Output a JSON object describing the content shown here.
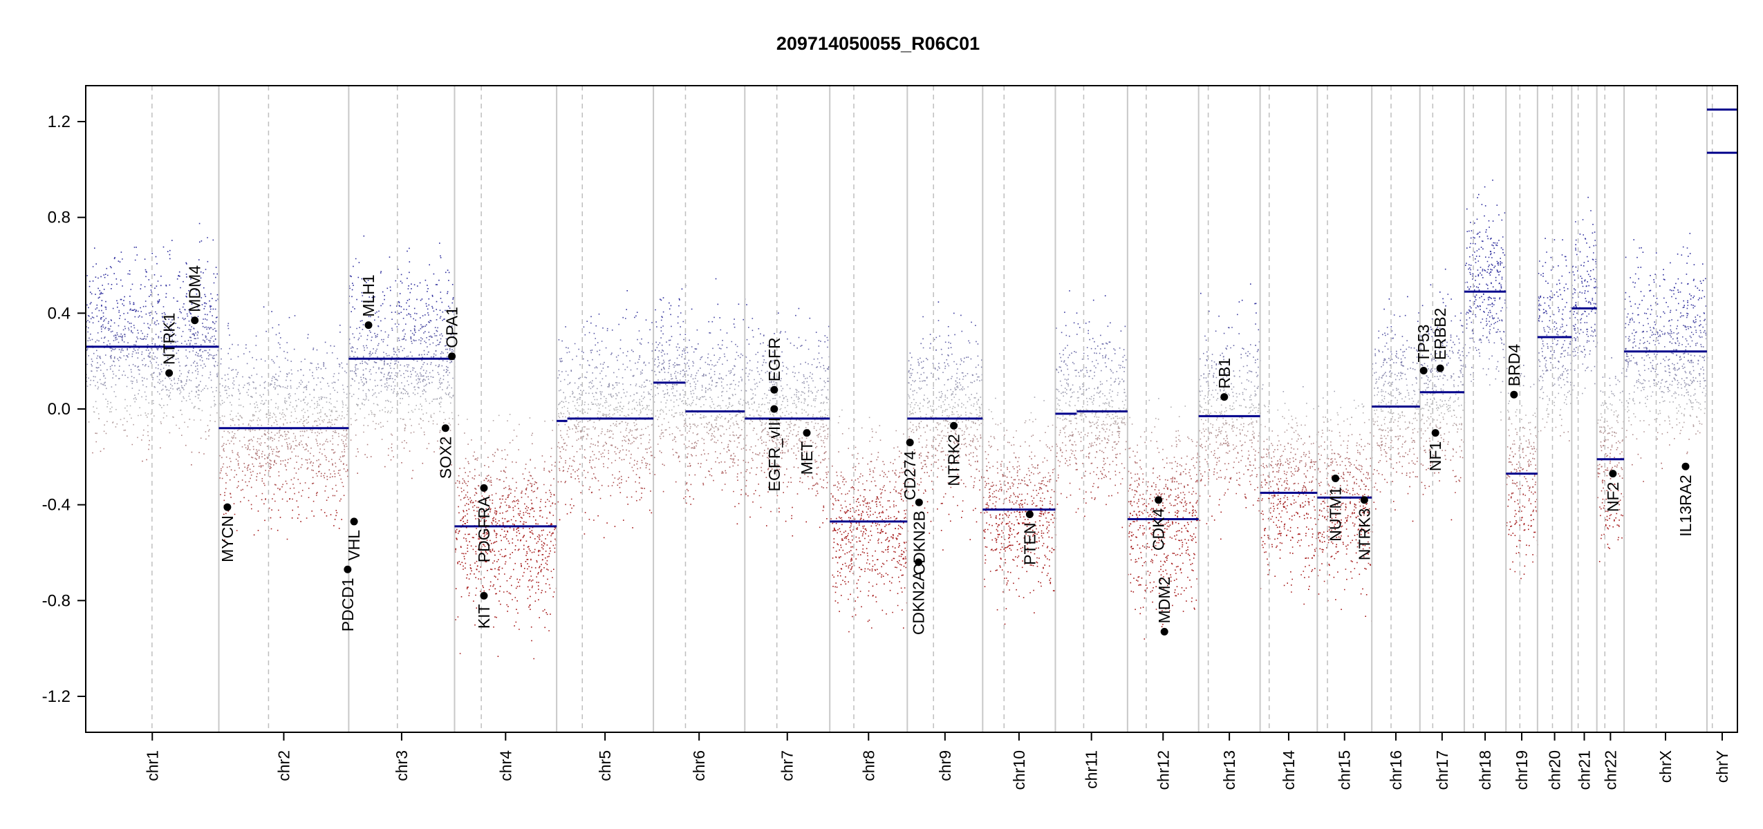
{
  "chart_data": {
    "type": "scatter",
    "title": "209714050055_R06C01",
    "xlabel": "",
    "ylabel": "",
    "ylim": [
      -1.35,
      1.35
    ],
    "yticks": [
      -1.2,
      -0.8,
      -0.4,
      0.0,
      0.4,
      0.8,
      1.2
    ],
    "ytick_labels": [
      "-1.2",
      "-0.8",
      "-0.4",
      "0.0",
      "0.4",
      "0.8",
      "1.2"
    ],
    "chromosomes": [
      {
        "name": "chr1",
        "length": 249,
        "centromere": 124
      },
      {
        "name": "chr2",
        "length": 243,
        "centromere": 93
      },
      {
        "name": "chr3",
        "length": 198,
        "centromere": 91
      },
      {
        "name": "chr4",
        "length": 191,
        "centromere": 50
      },
      {
        "name": "chr5",
        "length": 181,
        "centromere": 48
      },
      {
        "name": "chr6",
        "length": 171,
        "centromere": 60
      },
      {
        "name": "chr7",
        "length": 159,
        "centromere": 60
      },
      {
        "name": "chr8",
        "length": 145,
        "centromere": 45
      },
      {
        "name": "chr9",
        "length": 141,
        "centromere": 49
      },
      {
        "name": "chr10",
        "length": 136,
        "centromere": 40
      },
      {
        "name": "chr11",
        "length": 135,
        "centromere": 53
      },
      {
        "name": "chr12",
        "length": 133,
        "centromere": 35
      },
      {
        "name": "chr13",
        "length": 115,
        "centromere": 18
      },
      {
        "name": "chr14",
        "length": 107,
        "centromere": 17
      },
      {
        "name": "chr15",
        "length": 102,
        "centromere": 19
      },
      {
        "name": "chr16",
        "length": 90,
        "centromere": 36
      },
      {
        "name": "chr17",
        "length": 83,
        "centromere": 24
      },
      {
        "name": "chr18",
        "length": 78,
        "centromere": 17
      },
      {
        "name": "chr19",
        "length": 59,
        "centromere": 26
      },
      {
        "name": "chr20",
        "length": 64,
        "centromere": 28
      },
      {
        "name": "chr21",
        "length": 47,
        "centromere": 12
      },
      {
        "name": "chr22",
        "length": 51,
        "centromere": 15
      },
      {
        "name": "chrX",
        "length": 155,
        "centromere": 60
      },
      {
        "name": "chrY",
        "length": 57,
        "centromere": 10
      }
    ],
    "segments": [
      {
        "chr": "chr1",
        "start": 0,
        "end": 249,
        "value": 0.26
      },
      {
        "chr": "chr2",
        "start": 0,
        "end": 243,
        "value": -0.08
      },
      {
        "chr": "chr3",
        "start": 0,
        "end": 198,
        "value": 0.21
      },
      {
        "chr": "chr4",
        "start": 0,
        "end": 191,
        "value": -0.49
      },
      {
        "chr": "chr5",
        "start": 0,
        "end": 20,
        "value": -0.05
      },
      {
        "chr": "chr5",
        "start": 20,
        "end": 181,
        "value": -0.04
      },
      {
        "chr": "chr6",
        "start": 0,
        "end": 60,
        "value": 0.11
      },
      {
        "chr": "chr6",
        "start": 60,
        "end": 171,
        "value": -0.01
      },
      {
        "chr": "chr7",
        "start": 0,
        "end": 159,
        "value": -0.04
      },
      {
        "chr": "chr8",
        "start": 0,
        "end": 145,
        "value": -0.47
      },
      {
        "chr": "chr9",
        "start": 0,
        "end": 141,
        "value": -0.04
      },
      {
        "chr": "chr10",
        "start": 0,
        "end": 136,
        "value": -0.42
      },
      {
        "chr": "chr11",
        "start": 0,
        "end": 40,
        "value": -0.02
      },
      {
        "chr": "chr11",
        "start": 40,
        "end": 135,
        "value": -0.01
      },
      {
        "chr": "chr12",
        "start": 0,
        "end": 133,
        "value": -0.46
      },
      {
        "chr": "chr13",
        "start": 0,
        "end": 115,
        "value": -0.03
      },
      {
        "chr": "chr14",
        "start": 0,
        "end": 107,
        "value": -0.35
      },
      {
        "chr": "chr15",
        "start": 0,
        "end": 102,
        "value": -0.37
      },
      {
        "chr": "chr16",
        "start": 0,
        "end": 90,
        "value": 0.01
      },
      {
        "chr": "chr17",
        "start": 0,
        "end": 83,
        "value": 0.07
      },
      {
        "chr": "chr18",
        "start": 0,
        "end": 78,
        "value": 0.49
      },
      {
        "chr": "chr19",
        "start": 0,
        "end": 59,
        "value": -0.27
      },
      {
        "chr": "chr20",
        "start": 0,
        "end": 64,
        "value": 0.3
      },
      {
        "chr": "chr21",
        "start": 0,
        "end": 47,
        "value": 0.42
      },
      {
        "chr": "chr22",
        "start": 0,
        "end": 51,
        "value": -0.21
      },
      {
        "chr": "chrX",
        "start": 0,
        "end": 155,
        "value": 0.24
      },
      {
        "chr": "chrY",
        "start": 0,
        "end": 57,
        "value": 1.07
      },
      {
        "chr": "chrY",
        "start": 0,
        "end": 57,
        "value": 1.25
      }
    ],
    "genes": [
      {
        "name": "NTRK1",
        "chr": "chr1",
        "pos": 156,
        "value": 0.15,
        "label_side": "above"
      },
      {
        "name": "MDM4",
        "chr": "chr1",
        "pos": 204,
        "value": 0.37,
        "label_side": "above"
      },
      {
        "name": "MYCN",
        "chr": "chr2",
        "pos": 16,
        "value": -0.41,
        "label_side": "below"
      },
      {
        "name": "PDCD1",
        "chr": "chr2",
        "pos": 241,
        "value": -0.67,
        "label_side": "below"
      },
      {
        "name": "VHL",
        "chr": "chr3",
        "pos": 10,
        "value": -0.47,
        "label_side": "below"
      },
      {
        "name": "MLH1",
        "chr": "chr3",
        "pos": 37,
        "value": 0.35,
        "label_side": "above"
      },
      {
        "name": "OPA1",
        "chr": "chr3",
        "pos": 193,
        "value": 0.22,
        "label_side": "above"
      },
      {
        "name": "SOX2",
        "chr": "chr3",
        "pos": 181,
        "value": -0.08,
        "label_side": "below"
      },
      {
        "name": "PDGFRA",
        "chr": "chr4",
        "pos": 55,
        "value": -0.33,
        "label_side": "below"
      },
      {
        "name": "KIT",
        "chr": "chr4",
        "pos": 55,
        "value": -0.78,
        "label_side": "below"
      },
      {
        "name": "EGFR",
        "chr": "chr7",
        "pos": 55,
        "value": 0.08,
        "label_side": "above"
      },
      {
        "name": "EGFR_vIII",
        "chr": "chr7",
        "pos": 55,
        "value": 0.0,
        "label_side": "below"
      },
      {
        "name": "MET",
        "chr": "chr7",
        "pos": 116,
        "value": -0.1,
        "label_side": "below"
      },
      {
        "name": "CD274",
        "chr": "chr9",
        "pos": 5,
        "value": -0.14,
        "label_side": "below"
      },
      {
        "name": "CDKN2A",
        "chr": "chr9",
        "pos": 21,
        "value": -0.64,
        "label_side": "below"
      },
      {
        "name": "CDKN2B",
        "chr": "chr9",
        "pos": 22,
        "value": -0.39,
        "label_side": "below"
      },
      {
        "name": "NTRK2",
        "chr": "chr9",
        "pos": 87,
        "value": -0.07,
        "label_side": "below"
      },
      {
        "name": "PTEN",
        "chr": "chr10",
        "pos": 88,
        "value": -0.44,
        "label_side": "below"
      },
      {
        "name": "CDK4",
        "chr": "chr12",
        "pos": 58,
        "value": -0.38,
        "label_side": "below"
      },
      {
        "name": "MDM2",
        "chr": "chr12",
        "pos": 69,
        "value": -0.93,
        "label_side": "above"
      },
      {
        "name": "RB1",
        "chr": "chr13",
        "pos": 48,
        "value": 0.05,
        "label_side": "above"
      },
      {
        "name": "NUTM1",
        "chr": "chr15",
        "pos": 34,
        "value": -0.29,
        "label_side": "below"
      },
      {
        "name": "NTRK3",
        "chr": "chr15",
        "pos": 88,
        "value": -0.38,
        "label_side": "below"
      },
      {
        "name": "TP53",
        "chr": "chr17",
        "pos": 7,
        "value": 0.16,
        "label_side": "above"
      },
      {
        "name": "ERBB2",
        "chr": "chr17",
        "pos": 38,
        "value": 0.17,
        "label_side": "above"
      },
      {
        "name": "NF1",
        "chr": "chr17",
        "pos": 29,
        "value": -0.1,
        "label_side": "below"
      },
      {
        "name": "BRD4",
        "chr": "chr19",
        "pos": 15,
        "value": 0.06,
        "label_side": "above"
      },
      {
        "name": "NF2",
        "chr": "chr22",
        "pos": 30,
        "value": -0.27,
        "label_side": "below"
      },
      {
        "name": "IL13RA2",
        "chr": "chrX",
        "pos": 115,
        "value": -0.24,
        "label_side": "below"
      }
    ],
    "colors": {
      "segment": "#00008b",
      "gain": "#2b2b9c",
      "loss": "#a31515",
      "neutral": "#b4b4b4",
      "chrom_divider": "#c8c8c8",
      "centromere": "#bebebe",
      "gene_point": "#000000"
    }
  }
}
